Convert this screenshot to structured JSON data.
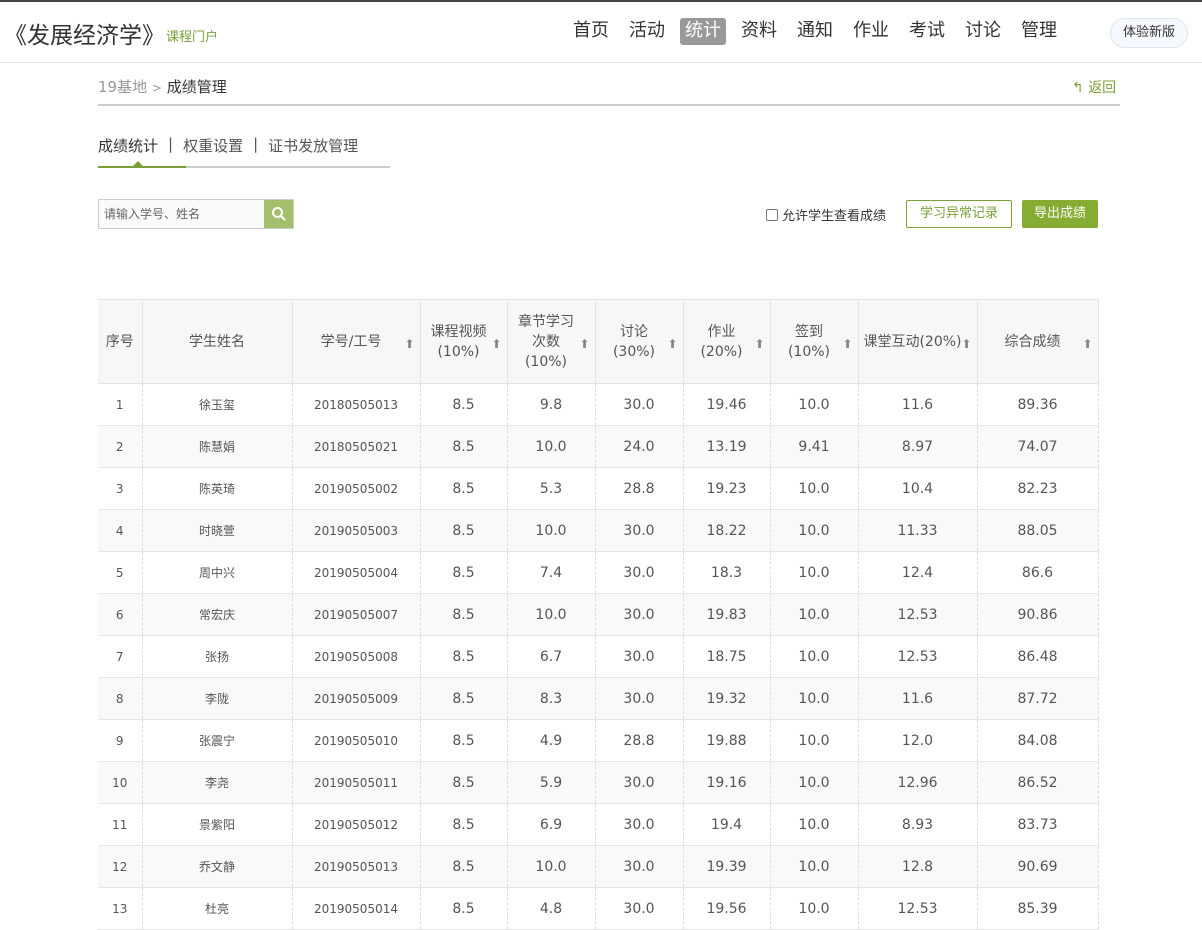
{
  "header": {
    "course_title": "《发展经济学》",
    "portal_label": "课程门户",
    "nav": [
      "首页",
      "活动",
      "统计",
      "资料",
      "通知",
      "作业",
      "考试",
      "讨论",
      "管理"
    ],
    "active_nav": "统计",
    "new_version": "体验新版"
  },
  "breadcrumb": {
    "parent": "19基地",
    "separator": ">",
    "current": "成绩管理",
    "back": "返回"
  },
  "tabs": [
    "成绩统计",
    "权重设置",
    "证书发放管理"
  ],
  "tab_sep": "|",
  "toolbar": {
    "search_placeholder": "请输入学号、姓名",
    "allow_label": "允许学生查看成绩",
    "allow_checked": false,
    "abnormal_button": "学习异常记录",
    "export_button": "导出成绩"
  },
  "colors": {
    "accent": "#7ba03a"
  },
  "table": {
    "headers": [
      "序号",
      "学生姓名",
      "学号/工号",
      "课程视频(10%)",
      "章节学习次数(10%)",
      "讨论(30%)",
      "作业(20%)",
      "签到(10%)",
      "课堂互动(20%)",
      "综合成绩"
    ],
    "rows": [
      [
        "1",
        "徐玉玺",
        "20180505013",
        "8.5",
        "9.8",
        "30.0",
        "19.46",
        "10.0",
        "11.6",
        "89.36"
      ],
      [
        "2",
        "陈慧娟",
        "20180505021",
        "8.5",
        "10.0",
        "24.0",
        "13.19",
        "9.41",
        "8.97",
        "74.07"
      ],
      [
        "3",
        "陈英琦",
        "20190505002",
        "8.5",
        "5.3",
        "28.8",
        "19.23",
        "10.0",
        "10.4",
        "82.23"
      ],
      [
        "4",
        "时晓萱",
        "20190505003",
        "8.5",
        "10.0",
        "30.0",
        "18.22",
        "10.0",
        "11.33",
        "88.05"
      ],
      [
        "5",
        "周中兴",
        "20190505004",
        "8.5",
        "7.4",
        "30.0",
        "18.3",
        "10.0",
        "12.4",
        "86.6"
      ],
      [
        "6",
        "常宏庆",
        "20190505007",
        "8.5",
        "10.0",
        "30.0",
        "19.83",
        "10.0",
        "12.53",
        "90.86"
      ],
      [
        "7",
        "张扬",
        "20190505008",
        "8.5",
        "6.7",
        "30.0",
        "18.75",
        "10.0",
        "12.53",
        "86.48"
      ],
      [
        "8",
        "李陇",
        "20190505009",
        "8.5",
        "8.3",
        "30.0",
        "19.32",
        "10.0",
        "11.6",
        "87.72"
      ],
      [
        "9",
        "张震宁",
        "20190505010",
        "8.5",
        "4.9",
        "28.8",
        "19.88",
        "10.0",
        "12.0",
        "84.08"
      ],
      [
        "10",
        "李尧",
        "20190505011",
        "8.5",
        "5.9",
        "30.0",
        "19.16",
        "10.0",
        "12.96",
        "86.52"
      ],
      [
        "11",
        "景紫阳",
        "20190505012",
        "8.5",
        "6.9",
        "30.0",
        "19.4",
        "10.0",
        "8.93",
        "83.73"
      ],
      [
        "12",
        "乔文静",
        "20190505013",
        "8.5",
        "10.0",
        "30.0",
        "19.39",
        "10.0",
        "12.8",
        "90.69"
      ],
      [
        "13",
        "杜亮",
        "20190505014",
        "8.5",
        "4.8",
        "30.0",
        "19.56",
        "10.0",
        "12.53",
        "85.39"
      ]
    ]
  }
}
